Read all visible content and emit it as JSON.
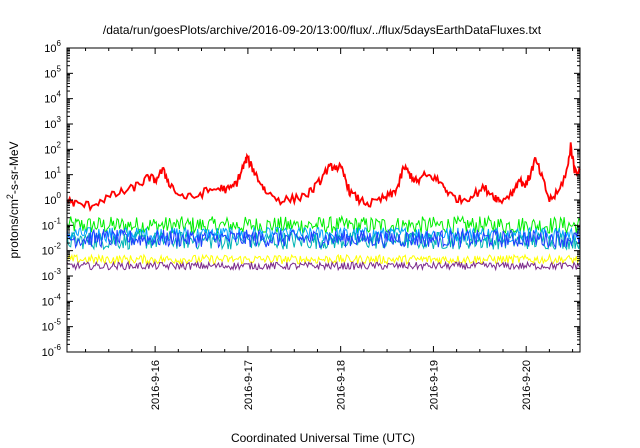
{
  "chart_data": {
    "type": "line",
    "title": "/data/run/goesPlots/archive/2016-09-20/13:00/flux/../flux/5daysEarthDataFluxes.txt",
    "xlabel": "Coordinated Universal Time (UTC)",
    "ylabel": "protons/cm2-s-sr-MeV",
    "ylabel_parts": {
      "pre": "protons/cm",
      "sup": "2",
      "post": "-s-sr-MeV"
    },
    "yscale": "log",
    "ylim": [
      1e-06,
      1000000.0
    ],
    "xlim_days": [
      15.05,
      20.58
    ],
    "y_ticks": [
      {
        "base": "10",
        "exp": "-6"
      },
      {
        "base": "10",
        "exp": "-5"
      },
      {
        "base": "10",
        "exp": "-4"
      },
      {
        "base": "10",
        "exp": "-3"
      },
      {
        "base": "10",
        "exp": "-2"
      },
      {
        "base": "10",
        "exp": "-1"
      },
      {
        "base": "10",
        "exp": "0"
      },
      {
        "base": "10",
        "exp": "1"
      },
      {
        "base": "10",
        "exp": "2"
      },
      {
        "base": "10",
        "exp": "3"
      },
      {
        "base": "10",
        "exp": "4"
      },
      {
        "base": "10",
        "exp": "5"
      },
      {
        "base": "10",
        "exp": "6"
      }
    ],
    "x_ticks": [
      "2016-9-16",
      "2016-9-17",
      "2016-9-18",
      "2016-9-19",
      "2016-9-20"
    ],
    "grid": false,
    "legend": "none",
    "series": [
      {
        "color": "#ff0000",
        "values": [
          [
            15.05,
            1.0
          ],
          [
            15.15,
            0.7
          ],
          [
            15.3,
            0.6
          ],
          [
            15.45,
            1.1
          ],
          [
            15.6,
            1.8
          ],
          [
            15.72,
            2.5
          ],
          [
            15.85,
            4.5
          ],
          [
            15.93,
            8.0
          ],
          [
            16.0,
            6.0
          ],
          [
            16.08,
            15
          ],
          [
            16.15,
            5.0
          ],
          [
            16.25,
            1.6
          ],
          [
            16.4,
            1.2
          ],
          [
            16.55,
            2.2
          ],
          [
            16.7,
            3.0
          ],
          [
            16.8,
            2.5
          ],
          [
            16.88,
            5.0
          ],
          [
            16.95,
            20
          ],
          [
            16.99,
            45
          ],
          [
            17.05,
            18
          ],
          [
            17.12,
            6.0
          ],
          [
            17.2,
            2.0
          ],
          [
            17.35,
            1.0
          ],
          [
            17.5,
            1.1
          ],
          [
            17.65,
            1.8
          ],
          [
            17.75,
            4.0
          ],
          [
            17.85,
            15
          ],
          [
            17.92,
            22
          ],
          [
            18.0,
            18
          ],
          [
            18.05,
            7.0
          ],
          [
            18.1,
            2.0
          ],
          [
            18.2,
            1.0
          ],
          [
            18.32,
            0.7
          ],
          [
            18.45,
            1.1
          ],
          [
            18.55,
            1.6
          ],
          [
            18.62,
            3.5
          ],
          [
            18.68,
            20
          ],
          [
            18.75,
            10
          ],
          [
            18.82,
            5.0
          ],
          [
            18.9,
            9.0
          ],
          [
            19.0,
            8.0
          ],
          [
            19.1,
            4.0
          ],
          [
            19.18,
            1.6
          ],
          [
            19.3,
            1.0
          ],
          [
            19.42,
            1.5
          ],
          [
            19.55,
            3.0
          ],
          [
            19.65,
            1.5
          ],
          [
            19.72,
            0.9
          ],
          [
            19.85,
            2.0
          ],
          [
            19.92,
            6.0
          ],
          [
            20.0,
            4.0
          ],
          [
            20.05,
            12
          ],
          [
            20.1,
            40
          ],
          [
            20.18,
            6.0
          ],
          [
            20.25,
            1.0
          ],
          [
            20.35,
            2.0
          ],
          [
            20.45,
            20
          ],
          [
            20.48,
            150
          ],
          [
            20.52,
            15
          ],
          [
            20.58,
            15
          ]
        ]
      },
      {
        "color": "#00ee00",
        "base": 0.1,
        "noise": 0.35,
        "range": [
          0.05,
          0.3
        ]
      },
      {
        "color": "#00b4b4",
        "base": 0.025,
        "noise": 0.35,
        "range": [
          0.01,
          0.07
        ]
      },
      {
        "color": "#1f3dff",
        "base": 0.03,
        "noise": 0.35,
        "range": [
          0.012,
          0.08
        ]
      },
      {
        "color": "#00a2ff",
        "base": 0.045,
        "noise": 0.3,
        "range": [
          0.02,
          0.08
        ]
      },
      {
        "color": "#ffff00",
        "base": 0.0045,
        "noise": 0.18,
        "range": [
          0.003,
          0.007
        ]
      },
      {
        "color": "#7b2a8a",
        "base": 0.0025,
        "noise": 0.15,
        "range": [
          0.0017,
          0.0035
        ]
      }
    ]
  }
}
